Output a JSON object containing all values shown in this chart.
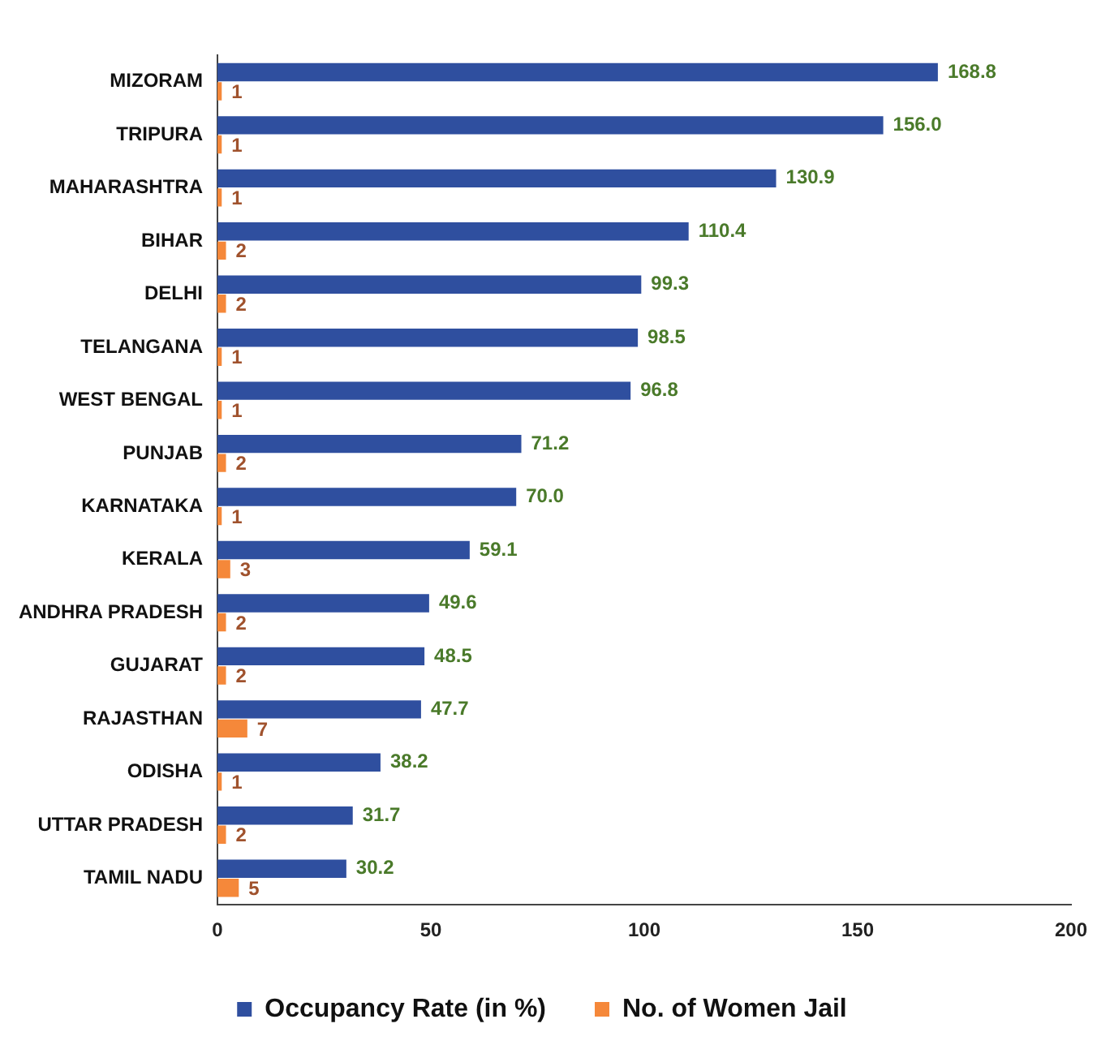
{
  "chart_data": {
    "type": "bar",
    "orientation": "horizontal",
    "categories": [
      "MIZORAM",
      "TRIPURA",
      "MAHARASHTRA",
      "BIHAR",
      "DELHI",
      "TELANGANA",
      "WEST BENGAL",
      "PUNJAB",
      "KARNATAKA",
      "KERALA",
      "ANDHRA PRADESH",
      "GUJARAT",
      "RAJASTHAN",
      "ODISHA",
      "UTTAR PRADESH",
      "TAMIL NADU"
    ],
    "series": [
      {
        "name": "Occupancy Rate (in %)",
        "color": "#2f4f9f",
        "values": [
          168.8,
          156.0,
          130.9,
          110.4,
          99.3,
          98.5,
          96.8,
          71.2,
          70.0,
          59.1,
          49.6,
          48.5,
          47.7,
          38.2,
          31.7,
          30.2
        ],
        "value_labels": [
          "168.8",
          "156.0",
          "130.9",
          "110.4",
          "99.3",
          "98.5",
          "96.8",
          "71.2",
          "70.0",
          "59.1",
          "49.6",
          "48.5",
          "47.7",
          "38.2",
          "31.7",
          "30.2"
        ]
      },
      {
        "name": "No. of Women Jail",
        "color": "#f5883a",
        "values": [
          1,
          1,
          1,
          2,
          2,
          1,
          1,
          2,
          1,
          3,
          2,
          2,
          7,
          1,
          2,
          5
        ],
        "value_labels": [
          "1",
          "1",
          "1",
          "2",
          "2",
          "1",
          "1",
          "2",
          "1",
          "3",
          "2",
          "2",
          "7",
          "1",
          "2",
          "5"
        ]
      }
    ],
    "xlim": [
      0,
      200
    ],
    "xticks": [
      0,
      50,
      100,
      150,
      200
    ],
    "grid": false,
    "legend": "bottom"
  }
}
